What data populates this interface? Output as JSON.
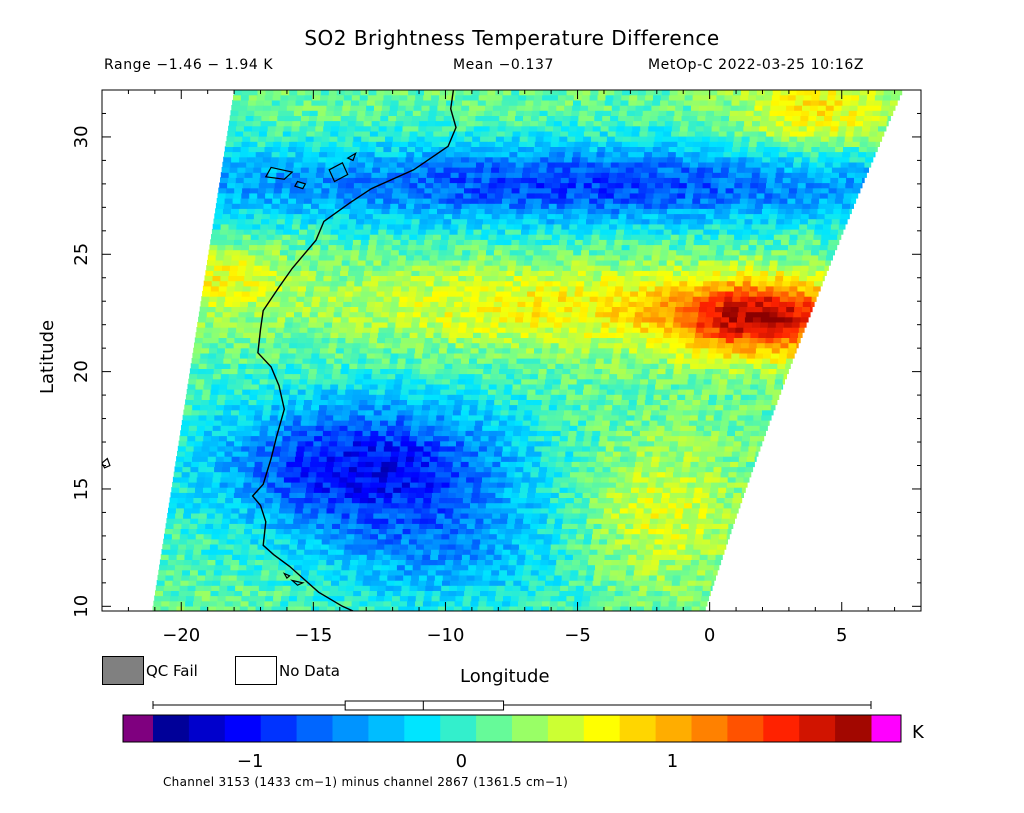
{
  "header": {
    "title": "SO2 Brightness Temperature Difference",
    "range": "Range −1.46 − 1.94 K",
    "mean": "Mean −0.137",
    "satellite_time": "MetOp-C 2022-03-25 10:16Z"
  },
  "legend": {
    "qc_fail_label": "QC Fail",
    "no_data_label": "No Data",
    "qc_fail_color": "#808080",
    "no_data_color": "#ffffff"
  },
  "caption": "Channel 3153 (1433 cm−1) minus channel 2867 (1361.5 cm−1)",
  "chart_data": {
    "type": "heatmap",
    "xlabel": "Longitude",
    "ylabel": "Latitude",
    "xlim": [
      -23,
      8
    ],
    "ylim": [
      9.8,
      32
    ],
    "xticks": [
      -20,
      -15,
      -10,
      -5,
      0,
      5
    ],
    "xtick_labels": [
      "−20",
      "−15",
      "−10",
      "−5",
      "0",
      "5"
    ],
    "yticks": [
      10,
      15,
      20,
      25,
      30
    ],
    "ytick_labels": [
      "10",
      "15",
      "20",
      "25",
      "30"
    ],
    "swath_corners": {
      "top_left": [
        -18,
        32
      ],
      "top_right": [
        7.3,
        32
      ],
      "bottom_right": [
        -0.2,
        9.8
      ],
      "bottom_left": [
        -21.1,
        9.8
      ]
    },
    "features": [
      {
        "name": "positive anomaly",
        "center": [
          1.5,
          22.3
        ],
        "value": 1.7
      },
      {
        "name": "negative band north",
        "center": [
          -5,
          28
        ],
        "value": -0.9
      },
      {
        "name": "negative region south",
        "center": [
          -13,
          16
        ],
        "value": -1.1
      }
    ],
    "colorbar": {
      "unit": "K",
      "min": -1.46,
      "max": 1.94,
      "ticks": [
        -1,
        0,
        1
      ],
      "tick_labels": [
        "−1",
        "0",
        "1"
      ],
      "boxplot": {
        "whisker_low": -1.46,
        "q1": -0.55,
        "median": -0.18,
        "q3": 0.2,
        "whisker_high": 1.94
      },
      "colors": [
        "#00007f",
        "#0000ff",
        "#0080ff",
        "#00e5ff",
        "#7fff7f",
        "#ffff00",
        "#ff9900",
        "#ff2200",
        "#8b0000"
      ],
      "underflow_color": "#7f007f",
      "overflow_color": "#ff00ff"
    }
  }
}
